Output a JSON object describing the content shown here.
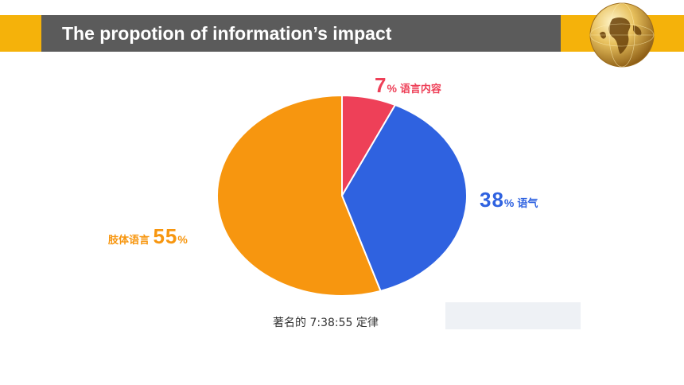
{
  "slide": {
    "title": "The propotion of information’s impact",
    "colors": {
      "band": "#f5b20a",
      "title_bar": "#5b5b5b",
      "title_text": "#ffffff"
    },
    "logo_icon": "golden-globe-icon"
  },
  "chart_data": {
    "type": "pie",
    "labels": [
      "语言内容",
      "语气",
      "肢体语言"
    ],
    "values": [
      7,
      38,
      55
    ],
    "display": [
      {
        "num": "7",
        "unit": "%",
        "name": "语言内容",
        "color": "#ee4058"
      },
      {
        "num": "38",
        "unit": "%",
        "name": "语气",
        "color": "#2f62e0"
      },
      {
        "num": "55",
        "unit": "%",
        "name": "肢体语言",
        "color": "#f7960f"
      }
    ],
    "start_angle_deg": 0,
    "direction": "clockwise",
    "caption": "著名的 7:38:55 定律"
  }
}
